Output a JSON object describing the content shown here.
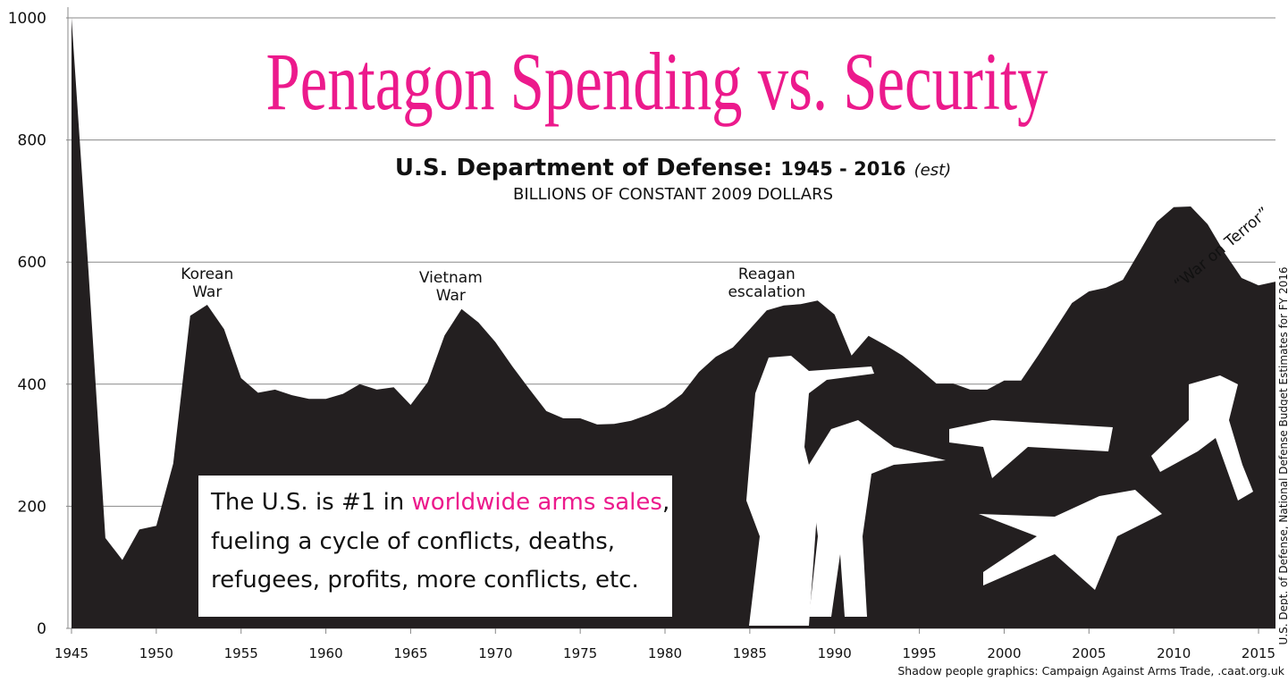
{
  "chart_data": {
    "type": "area",
    "title": "Pentagon Spending vs. Security",
    "subtitle": {
      "agency": "U.S. Department of Defense:",
      "years": "1945 - 2016",
      "note": "(est)"
    },
    "y_label": "BILLIONS OF CONSTANT 2009 DOLLARS",
    "x": [
      1945,
      1946,
      1947,
      1948,
      1949,
      1950,
      1951,
      1952,
      1953,
      1954,
      1955,
      1956,
      1957,
      1958,
      1959,
      1960,
      1961,
      1962,
      1963,
      1964,
      1965,
      1966,
      1967,
      1968,
      1969,
      1970,
      1971,
      1972,
      1973,
      1974,
      1975,
      1976,
      1977,
      1978,
      1979,
      1980,
      1981,
      1982,
      1983,
      1984,
      1985,
      1986,
      1987,
      1988,
      1989,
      1990,
      1991,
      1992,
      1993,
      1994,
      1995,
      1996,
      1997,
      1998,
      1999,
      2000,
      2001,
      2002,
      2003,
      2004,
      2005,
      2006,
      2007,
      2008,
      2009,
      2010,
      2011,
      2012,
      2013,
      2014,
      2015,
      2016
    ],
    "values": [
      1000,
      585,
      148,
      112,
      162,
      168,
      270,
      512,
      530,
      490,
      410,
      386,
      391,
      382,
      376,
      376,
      384,
      400,
      391,
      395,
      366,
      403,
      480,
      523,
      501,
      469,
      429,
      392,
      356,
      344,
      344,
      334,
      335,
      340,
      350,
      363,
      384,
      420,
      445,
      460,
      490,
      521,
      529,
      531,
      537,
      514,
      447,
      479,
      464,
      447,
      425,
      401,
      401,
      391,
      391,
      406,
      406,
      447,
      490,
      533,
      552,
      558,
      571,
      618,
      666,
      690,
      691,
      662,
      615,
      574,
      562,
      568
    ],
    "color": "#231f20",
    "xlim": [
      1945,
      2016
    ],
    "ylim": [
      0,
      1000
    ],
    "xticks": [
      1945,
      1950,
      1955,
      1960,
      1965,
      1970,
      1975,
      1980,
      1985,
      1990,
      1995,
      2000,
      2005,
      2010,
      2015
    ],
    "yticks": [
      0,
      200,
      400,
      600,
      800,
      1000
    ],
    "grid": true,
    "annotations": [
      {
        "lines": [
          "Korean",
          "War"
        ],
        "x": 1953
      },
      {
        "lines": [
          "Vietnam",
          "War"
        ],
        "x": 1968
      },
      {
        "lines": [
          "Reagan",
          "escalation"
        ],
        "x": 1986
      },
      {
        "lines": [
          "“War on Terror”"
        ],
        "x": 2006
      }
    ],
    "callout": {
      "start": "The U.S. is #1 in ",
      "highlight": "worldwide arms sales",
      "end": ",",
      "line2": "fueling a cycle of conflicts, deaths,",
      "line3": "refugees, profits, more conflicts, etc."
    },
    "source": "U.S. Dept. of Defense, National Defense Budget Estimates for FY 2016",
    "credit": "Shadow people graphics: Campaign Against Arms Trade, .caat.org.uk"
  }
}
